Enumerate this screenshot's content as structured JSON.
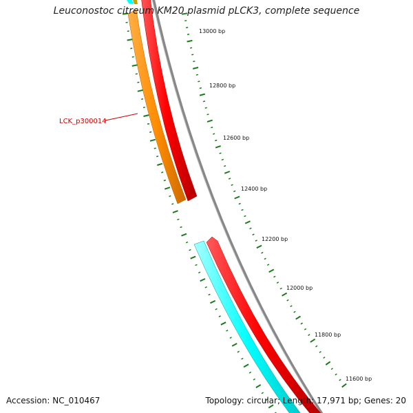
{
  "title": "Leuconostoc citreum KM20 plasmid pLCK3, complete sequence",
  "ticks": [
    {
      "label": "13000 bp"
    },
    {
      "label": "12800 bp"
    },
    {
      "label": "12600 bp"
    },
    {
      "label": "12400 bp"
    },
    {
      "label": "12200 bp"
    },
    {
      "label": "12000 bp"
    },
    {
      "label": "11800 bp"
    },
    {
      "label": "11600 bp"
    }
  ],
  "gene_labels": [
    {
      "label": "LCK_p300014"
    }
  ],
  "footer": {
    "accession": "Accession: NC_010467",
    "summary": "Topology: circular; Length: 17,971 bp; Genes: 20"
  },
  "colors": {
    "backbone": "#888888",
    "ticks": "#1a7a1a",
    "forward_gene": "#ff0000",
    "reverse_gene_orange": "#ff8c00",
    "reverse_gene_cyan": "#00ffff",
    "label": "#cc0000"
  }
}
